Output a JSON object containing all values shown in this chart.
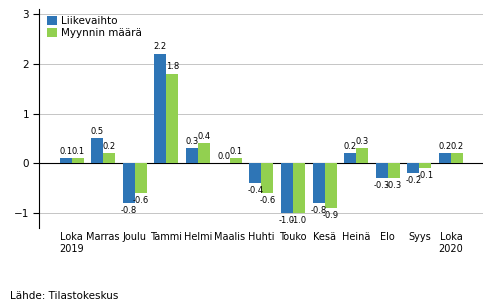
{
  "categories": [
    "Loka\n2019",
    "Marras",
    "Joulu",
    "Tammi",
    "Helmi",
    "Maalis",
    "Huhti",
    "Touko",
    "Kesä",
    "Heinä",
    "Elo",
    "Syys",
    "Loka\n2020"
  ],
  "liikevaihto": [
    0.1,
    0.5,
    -0.8,
    2.2,
    0.3,
    0.0,
    -0.4,
    -1.0,
    -0.8,
    0.2,
    -0.3,
    -0.2,
    0.2
  ],
  "myynti": [
    0.1,
    0.2,
    -0.6,
    1.8,
    0.4,
    0.1,
    -0.6,
    -1.0,
    -0.9,
    0.3,
    -0.3,
    -0.1,
    0.2
  ],
  "liikevaihto_labels": [
    "0.1",
    "0.5",
    "-0.8",
    "2.2",
    "0.3",
    "0.0",
    "-0.4",
    "-1.0",
    "-0.8",
    "0.2",
    "-0.3",
    "-0.2",
    "0.2"
  ],
  "myynti_labels": [
    "0.1",
    "0.2",
    "-0.6",
    "1.8",
    "0.4",
    "0.1",
    "-0.6",
    "-1.0",
    "-0.9",
    "0.3",
    "-0.3",
    "-0.1",
    "0.2"
  ],
  "color_liikevaihto": "#2E75B6",
  "color_myynti": "#92D050",
  "legend_liikevaihto": "Liikevaihto",
  "legend_myynti": "Myynnin määrä",
  "ylim": [
    -1.3,
    3.1
  ],
  "yticks": [
    -1,
    0,
    1,
    2,
    3
  ],
  "bar_width": 0.38,
  "source_text": "Lähde: Tilastokeskus",
  "background_color": "#FFFFFF",
  "grid_color": "#BBBBBB",
  "label_fontsize": 6.0,
  "tick_fontsize": 7.0,
  "legend_fontsize": 7.5
}
